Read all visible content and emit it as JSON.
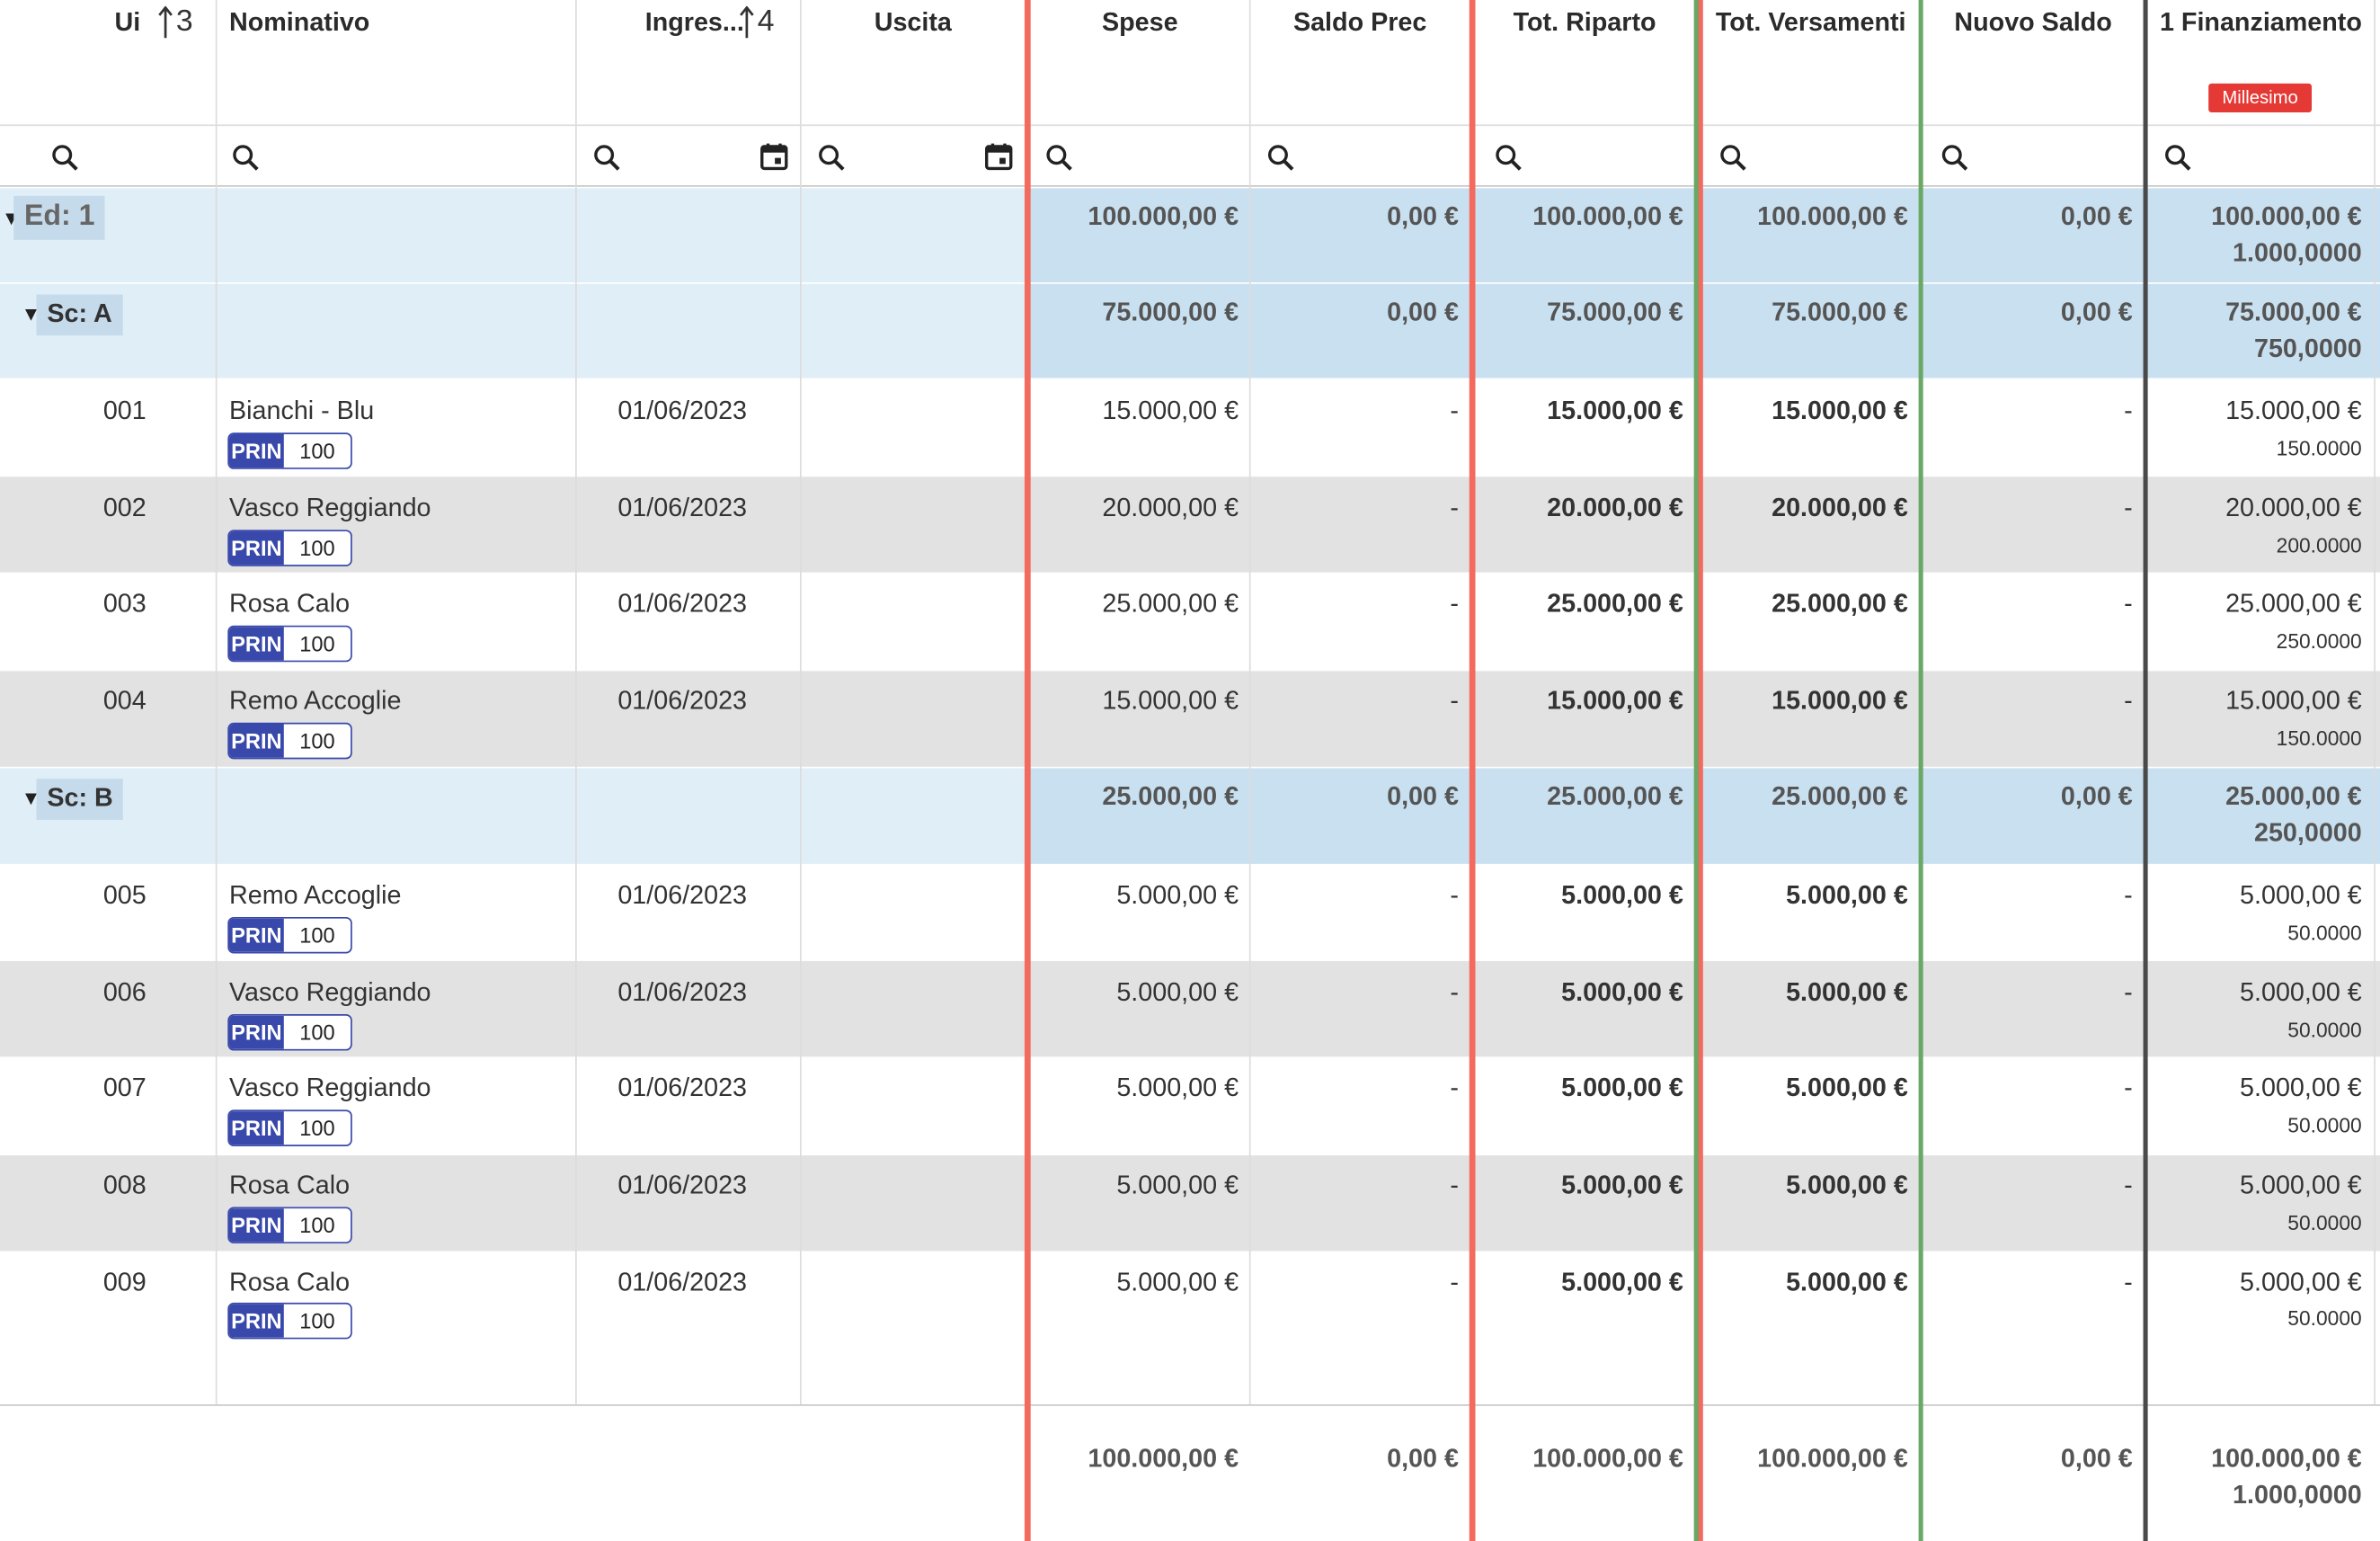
{
  "columns": {
    "ui": "Ui",
    "ui_sort_order": "3",
    "nominativo": "Nominativo",
    "ingresso": "Ingres...",
    "ingresso_sort_order": "4",
    "uscita": "Uscita",
    "spese": "Spese",
    "saldo_prec": "Saldo Prec",
    "tot_riparto": "Tot. Riparto",
    "tot_versamenti": "Tot. Versamenti",
    "nuovo_saldo": "Nuovo Saldo",
    "finanziamento": "1 Finanziamento",
    "finanziamento_badge": "Millesimo"
  },
  "accent_colors": {
    "red": "#f26b5e",
    "green": "#6aa866",
    "dark": "#4a4a4a",
    "badge": "#e53935",
    "prin": "#3949ab"
  },
  "groups": {
    "ed": {
      "label": "Ed: 1",
      "spese": "100.000,00 €",
      "saldo_prec": "0,00 €",
      "tot_riparto": "100.000,00 €",
      "tot_versamenti": "100.000,00 €",
      "nuovo_saldo": "0,00 €",
      "fin": "100.000,00 €",
      "fin_mill": "1.000,0000"
    },
    "sc_a": {
      "label": "Sc: A",
      "spese": "75.000,00 €",
      "saldo_prec": "0,00 €",
      "tot_riparto": "75.000,00 €",
      "tot_versamenti": "75.000,00 €",
      "nuovo_saldo": "0,00 €",
      "fin": "75.000,00 €",
      "fin_mill": "750,0000"
    },
    "sc_b": {
      "label": "Sc: B",
      "spese": "25.000,00 €",
      "saldo_prec": "0,00 €",
      "tot_riparto": "25.000,00 €",
      "tot_versamenti": "25.000,00 €",
      "nuovo_saldo": "0,00 €",
      "fin": "25.000,00 €",
      "fin_mill": "250,0000"
    }
  },
  "rows": [
    {
      "ui": "001",
      "nome": "Bianchi - Blu",
      "tag": "PRIN",
      "quota": "100",
      "ingresso": "01/06/2023",
      "uscita": "",
      "spese": "15.000,00 €",
      "saldo_prec": "-",
      "tot_riparto": "15.000,00 €",
      "tot_versamenti": "15.000,00 €",
      "nuovo_saldo": "-",
      "fin": "15.000,00 €",
      "fin_mill": "150.0000"
    },
    {
      "ui": "002",
      "nome": "Vasco Reggiando",
      "tag": "PRIN",
      "quota": "100",
      "ingresso": "01/06/2023",
      "uscita": "",
      "spese": "20.000,00 €",
      "saldo_prec": "-",
      "tot_riparto": "20.000,00 €",
      "tot_versamenti": "20.000,00 €",
      "nuovo_saldo": "-",
      "fin": "20.000,00 €",
      "fin_mill": "200.0000"
    },
    {
      "ui": "003",
      "nome": "Rosa Calo",
      "tag": "PRIN",
      "quota": "100",
      "ingresso": "01/06/2023",
      "uscita": "",
      "spese": "25.000,00 €",
      "saldo_prec": "-",
      "tot_riparto": "25.000,00 €",
      "tot_versamenti": "25.000,00 €",
      "nuovo_saldo": "-",
      "fin": "25.000,00 €",
      "fin_mill": "250.0000"
    },
    {
      "ui": "004",
      "nome": "Remo Accoglie",
      "tag": "PRIN",
      "quota": "100",
      "ingresso": "01/06/2023",
      "uscita": "",
      "spese": "15.000,00 €",
      "saldo_prec": "-",
      "tot_riparto": "15.000,00 €",
      "tot_versamenti": "15.000,00 €",
      "nuovo_saldo": "-",
      "fin": "15.000,00 €",
      "fin_mill": "150.0000"
    },
    {
      "ui": "005",
      "nome": "Remo Accoglie",
      "tag": "PRIN",
      "quota": "100",
      "ingresso": "01/06/2023",
      "uscita": "",
      "spese": "5.000,00 €",
      "saldo_prec": "-",
      "tot_riparto": "5.000,00 €",
      "tot_versamenti": "5.000,00 €",
      "nuovo_saldo": "-",
      "fin": "5.000,00 €",
      "fin_mill": "50.0000"
    },
    {
      "ui": "006",
      "nome": "Vasco Reggiando",
      "tag": "PRIN",
      "quota": "100",
      "ingresso": "01/06/2023",
      "uscita": "",
      "spese": "5.000,00 €",
      "saldo_prec": "-",
      "tot_riparto": "5.000,00 €",
      "tot_versamenti": "5.000,00 €",
      "nuovo_saldo": "-",
      "fin": "5.000,00 €",
      "fin_mill": "50.0000"
    },
    {
      "ui": "007",
      "nome": "Vasco Reggiando",
      "tag": "PRIN",
      "quota": "100",
      "ingresso": "01/06/2023",
      "uscita": "",
      "spese": "5.000,00 €",
      "saldo_prec": "-",
      "tot_riparto": "5.000,00 €",
      "tot_versamenti": "5.000,00 €",
      "nuovo_saldo": "-",
      "fin": "5.000,00 €",
      "fin_mill": "50.0000"
    },
    {
      "ui": "008",
      "nome": "Rosa Calo",
      "tag": "PRIN",
      "quota": "100",
      "ingresso": "01/06/2023",
      "uscita": "",
      "spese": "5.000,00 €",
      "saldo_prec": "-",
      "tot_riparto": "5.000,00 €",
      "tot_versamenti": "5.000,00 €",
      "nuovo_saldo": "-",
      "fin": "5.000,00 €",
      "fin_mill": "50.0000"
    },
    {
      "ui": "009",
      "nome": "Rosa Calo",
      "tag": "PRIN",
      "quota": "100",
      "ingresso": "01/06/2023",
      "uscita": "",
      "spese": "5.000,00 €",
      "saldo_prec": "-",
      "tot_riparto": "5.000,00 €",
      "tot_versamenti": "5.000,00 €",
      "nuovo_saldo": "-",
      "fin": "5.000,00 €",
      "fin_mill": "50.0000"
    }
  ],
  "totals": {
    "spese": "100.000,00 €",
    "saldo_prec": "0,00 €",
    "tot_riparto": "100.000,00 €",
    "tot_versamenti": "100.000,00 €",
    "nuovo_saldo": "0,00 €",
    "fin": "100.000,00 €",
    "fin_mill": "1.000,0000"
  },
  "icons": {
    "filter": "search-icon",
    "date": "calendar-icon",
    "sort": "sort-arrow-icon",
    "expand": "caret-down-icon"
  }
}
